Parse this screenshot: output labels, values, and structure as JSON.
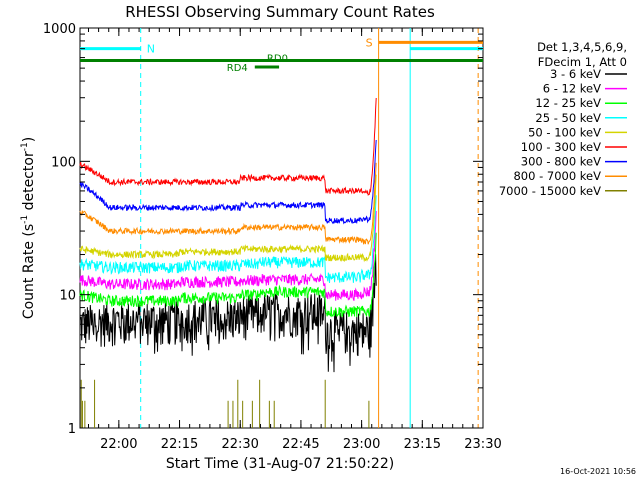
{
  "chart_data": {
    "type": "line",
    "title": "RHESSI Observing Summary Count Rates",
    "xlabel": "Start Time (31-Aug-07 21:50:22)",
    "ylabel_main": "Count Rate (s",
    "ylabel_sup1": "-1",
    "ylabel_mid": " detector",
    "ylabel_sup2": "-1",
    "ylabel_end": ")",
    "y_scale": "log",
    "xlim": [
      21.84,
      23.5
    ],
    "ylim": [
      1,
      1000
    ],
    "x_ticks": [
      {
        "value": 22.0,
        "label": "22:00"
      },
      {
        "value": 22.25,
        "label": "22:15"
      },
      {
        "value": 22.5,
        "label": "22:30"
      },
      {
        "value": 22.75,
        "label": "22:45"
      },
      {
        "value": 23.0,
        "label": "23:00"
      },
      {
        "value": 23.25,
        "label": "23:15"
      },
      {
        "value": 23.5,
        "label": "23:30"
      }
    ],
    "y_ticks": [
      {
        "value": 1,
        "label": "1"
      },
      {
        "value": 10,
        "label": "10"
      },
      {
        "value": 100,
        "label": "100"
      },
      {
        "value": 1000,
        "label": "1000"
      }
    ],
    "legend_header": [
      "Det 1,3,4,5,6,9,",
      "FDecim 1, Att 0"
    ],
    "legend_placement": "right",
    "series": [
      {
        "name": "3 - 6 keV",
        "color": "#000000",
        "base": [
          6,
          6.5,
          6.8,
          7.2,
          7.5,
          5.5,
          5.5,
          5.5
        ],
        "noise": 0.25
      },
      {
        "name": "6 - 12 keV",
        "color": "#ff00ff",
        "base": [
          13,
          12,
          12.5,
          12.8,
          13,
          10,
          10.5,
          10.5
        ],
        "noise": 0.1
      },
      {
        "name": "12 - 25 keV",
        "color": "#00ff00",
        "base": [
          10,
          9,
          9.5,
          10,
          10.5,
          7.5,
          7.5,
          7.5
        ],
        "noise": 0.1
      },
      {
        "name": "25 - 50 keV",
        "color": "#00ffff",
        "base": [
          17,
          16,
          16.5,
          17,
          17.5,
          13.5,
          14,
          14
        ],
        "noise": 0.1
      },
      {
        "name": "50 - 100 keV",
        "color": "#d4d400",
        "base": [
          22,
          20,
          21,
          22,
          22,
          19,
          19,
          19
        ],
        "noise": 0.06
      },
      {
        "name": "100 - 300 keV",
        "color": "#ff0000",
        "base": [
          95,
          70,
          70,
          75,
          75,
          60,
          58,
          58
        ],
        "noise": 0.05
      },
      {
        "name": "300 - 800 keV",
        "color": "#0000ff",
        "base": [
          68,
          45,
          45,
          47,
          47,
          36,
          37,
          37
        ],
        "noise": 0.05
      },
      {
        "name": "800 - 7000 keV",
        "color": "#ff8c00",
        "base": [
          42,
          30,
          30,
          32,
          32,
          26,
          25,
          25
        ],
        "noise": 0.05
      },
      {
        "name": "7000 - 15000 keV",
        "color": "#808000",
        "base": [
          1,
          1,
          1,
          1,
          1,
          1,
          1,
          1
        ],
        "noise": 0
      }
    ],
    "segment_times": [
      21.84,
      22.0,
      22.25,
      22.5,
      22.58,
      22.85,
      23.0,
      23.06
    ],
    "rise": {
      "start": 23.03,
      "end": 23.06,
      "peak_factor": 4
    },
    "annotations": {
      "N": {
        "label": "N",
        "x": 22.09,
        "line_x_start": 21.84,
        "line_x_end": 22.09,
        "value": 700,
        "color": "#00ffff"
      },
      "S": {
        "label": "S",
        "x": 23.07,
        "line_x_start": 23.07,
        "line_x_end": 23.5,
        "value": 780,
        "color": "#ff8c00"
      },
      "N2": {
        "x_start": 23.2,
        "x_end": 23.5,
        "value": 700,
        "color": "#00ffff"
      },
      "RD0": {
        "label": "RD0",
        "x_start": 21.84,
        "x_end": 23.5,
        "value": 570,
        "color": "#008000"
      },
      "RD4": {
        "label": "RD4",
        "x_start": 22.56,
        "x_end": 22.66,
        "value": 510,
        "color": "#008000"
      },
      "vlines": [
        {
          "x": 22.09,
          "color": "#00ffff",
          "style": "dashed"
        },
        {
          "x": 23.07,
          "color": "#ff8c00",
          "style": "solid"
        },
        {
          "x": 23.2,
          "color": "#00ffff",
          "style": "solid"
        },
        {
          "x": 23.48,
          "color": "#ff8c00",
          "style": "dashed"
        }
      ]
    },
    "footer_date": "16-Oct-2021 10:56"
  }
}
